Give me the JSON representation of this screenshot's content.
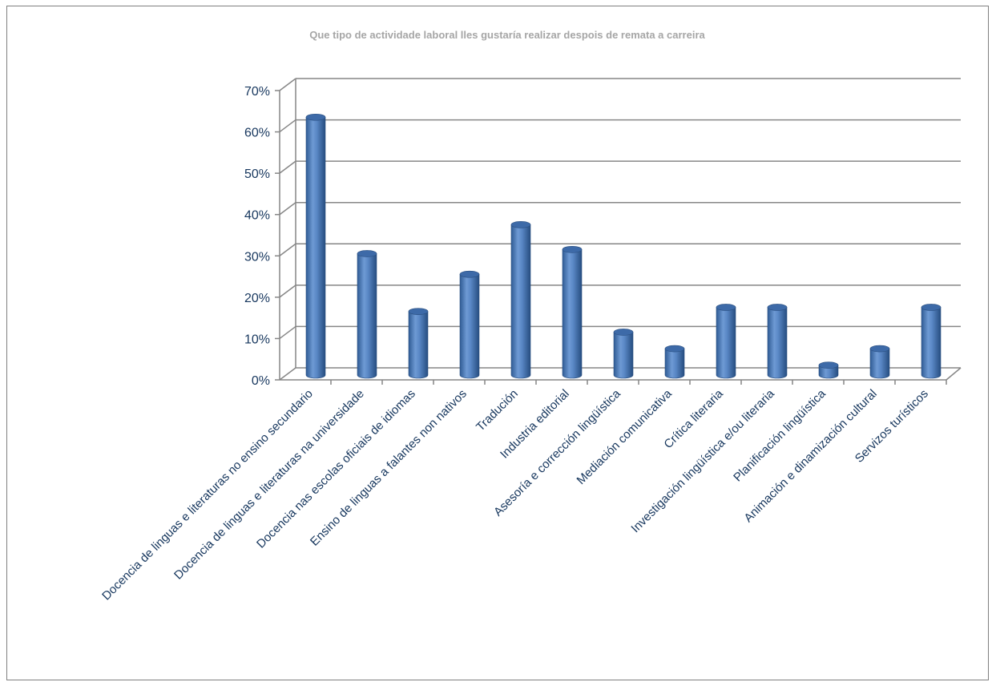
{
  "chart_data": {
    "type": "bar",
    "title": "Que tipo de actividade laboral lles gustaría realizar despois de remata a carreira",
    "xlabel": "",
    "ylabel": "",
    "ylim": [
      0,
      70
    ],
    "y_ticks": [
      "0%",
      "10%",
      "20%",
      "30%",
      "40%",
      "50%",
      "60%",
      "70%"
    ],
    "grid": true,
    "legend": "none",
    "bar_color": "#4f81bd",
    "categories": [
      "Docencia de linguas e literaturas no ensino secundario",
      "Docencia de linguas e literaturas na universidade",
      "Docencia nas escolas oficiais de idiomas",
      "Ensino de linguas a falantes non nativos",
      "Tradución",
      "Industria editorial",
      "Asesoría e corrección lingüística",
      "Mediación comunicativa",
      "Crítica literaria",
      "Investigación lingüística e/ou literaria",
      "Planificación lingüística",
      "Animación e dinamización cultural",
      "Servizos turísticos"
    ],
    "values": [
      62,
      29,
      15,
      24,
      36,
      30,
      10,
      6,
      16,
      16,
      2,
      6,
      16
    ]
  }
}
